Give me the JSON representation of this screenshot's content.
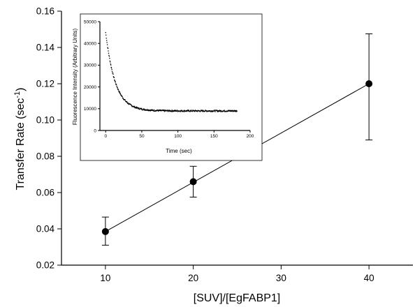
{
  "chart_data": [
    {
      "type": "scatter",
      "title": "",
      "xlabel": "[SUV]/[EgFABP1]",
      "ylabel_main": "Transfer Rate (sec",
      "ylabel_sup": "-1",
      "ylabel_close": ")",
      "xlim": [
        5,
        45
      ],
      "ylim": [
        0.02,
        0.16
      ],
      "xticks": [
        10,
        20,
        30,
        40
      ],
      "xtick_labels": [
        "10",
        "20",
        "30",
        "40"
      ],
      "yticks": [
        0.02,
        0.04,
        0.06,
        0.08,
        0.1,
        0.12,
        0.14,
        0.16
      ],
      "ytick_labels": [
        "0.02",
        "0.04",
        "0.06",
        "0.08",
        "0.10",
        "0.12",
        "0.14",
        "0.16"
      ],
      "grid": false,
      "series": [
        {
          "x": [
            10,
            20,
            40
          ],
          "y": [
            0.0385,
            0.066,
            0.12
          ],
          "err_low": [
            0.031,
            0.0575,
            0.089
          ],
          "err_high": [
            0.0465,
            0.0745,
            0.1475
          ]
        }
      ],
      "fit_line": {
        "x": [
          10,
          40
        ],
        "y": [
          0.0385,
          0.12
        ]
      }
    },
    {
      "type": "scatter",
      "title": "",
      "xlabel": "Time (sec)",
      "ylabel": "Fluorescence Intensity (Arbitrary Units)",
      "xlim": [
        -8,
        200
      ],
      "ylim": [
        0,
        50000
      ],
      "xticks": [
        0,
        50,
        100,
        150,
        200
      ],
      "xtick_labels": [
        "0",
        "50",
        "100",
        "150",
        "200"
      ],
      "yticks": [
        0,
        10000,
        20000,
        30000,
        40000,
        50000
      ],
      "ytick_labels": [
        "0",
        "10000",
        "20000",
        "30000",
        "40000",
        "50000"
      ],
      "grid": false,
      "decay_model": {
        "plateau": 9000,
        "amplitude": 36000,
        "rate": 0.075,
        "x_start": 0,
        "x_end": 182,
        "noise": 350
      }
    }
  ]
}
